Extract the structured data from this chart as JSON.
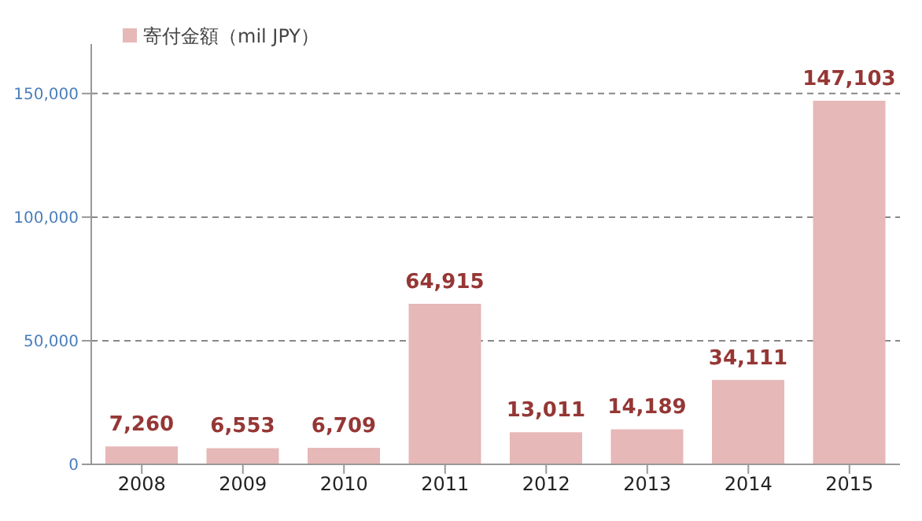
{
  "chart_data": {
    "type": "bar",
    "categories": [
      "2008",
      "2009",
      "2010",
      "2011",
      "2012",
      "2013",
      "2014",
      "2015"
    ],
    "series": [
      {
        "name": "寄付金額（mil JPY）",
        "color": "#e6b8b7",
        "values": [
          7260,
          6553,
          6709,
          64915,
          13011,
          14189,
          34111,
          147103
        ],
        "value_labels": [
          "7,260",
          "6,553",
          "6,709",
          "64,915",
          "13,011",
          "14,189",
          "34,111",
          "147,103"
        ]
      }
    ],
    "ylim": [
      0,
      170000
    ],
    "yticks": [
      0,
      {
        "value": 50000,
        "label": "50,000"
      },
      {
        "value": 100000,
        "label": "100,000"
      },
      {
        "value": 150000,
        "label": "150,000"
      }
    ],
    "grid": "y",
    "legend": "top left"
  }
}
